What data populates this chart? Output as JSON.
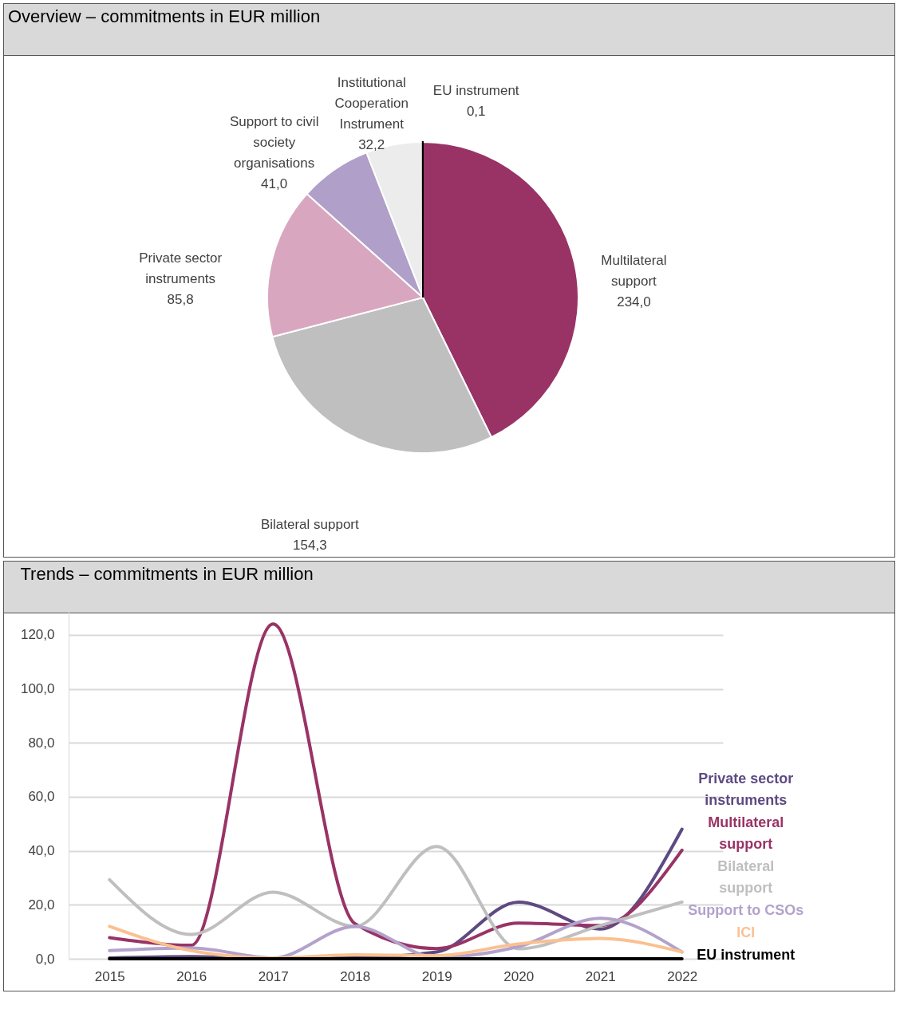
{
  "chart_data": [
    {
      "type": "pie",
      "title": "Overview – commitments in EUR million",
      "categories": [
        "Multilateral support",
        "Bilateral support",
        "Private sector instruments",
        "Support to civil society organisations",
        "Institutional Cooperation Instrument",
        "EU instrument"
      ],
      "values": [
        234.0,
        154.3,
        85.8,
        41.0,
        32.2,
        0.1
      ],
      "value_labels": [
        "234,0",
        "154,3",
        "85,8",
        "41,0",
        "32,2",
        "0,1"
      ],
      "colors": [
        "#993366",
        "#bfbfbf",
        "#d9a6bf",
        "#b09fc8",
        "#ececec",
        "#000000"
      ]
    },
    {
      "type": "line",
      "title": "Trends – commitments in EUR million",
      "categories": [
        "2015",
        "2016",
        "2017",
        "2018",
        "2019",
        "2020",
        "2021",
        "2022"
      ],
      "ylim": [
        0,
        130
      ],
      "yticks": [
        {
          "value": 0,
          "label": "0,0"
        },
        {
          "value": 20,
          "label": "20,0"
        },
        {
          "value": 40,
          "label": "40,0"
        },
        {
          "value": 60,
          "label": "60,0"
        },
        {
          "value": 80,
          "label": "80,0"
        },
        {
          "value": 100,
          "label": "100,0"
        },
        {
          "value": 120,
          "label": "120,0"
        }
      ],
      "grid": "y",
      "series": [
        {
          "name": "Private sector instruments",
          "color": "#5e4a82",
          "values": [
            0.3,
            0.8,
            0.3,
            0.5,
            2.5,
            21,
            11,
            48
          ]
        },
        {
          "name": "Multilateral support",
          "color": "#993366",
          "values": [
            7.8,
            5,
            124,
            13,
            3.8,
            13.2,
            12.3,
            40.2
          ]
        },
        {
          "name": "Bilateral support",
          "color": "#bfbfbf",
          "values": [
            29.3,
            9,
            24.7,
            12,
            41.6,
            3.7,
            12.3,
            21
          ]
        },
        {
          "name": "Support to CSOs",
          "color": "#b3a2cc",
          "values": [
            3,
            4,
            0.3,
            12,
            0.5,
            4.5,
            15,
            2.5
          ]
        },
        {
          "name": "ICI",
          "color": "#fac090",
          "values": [
            12,
            3,
            0.3,
            1.5,
            1.2,
            5.5,
            7.5,
            2.5
          ]
        },
        {
          "name": "EU instrument",
          "color": "#000000",
          "values": [
            0,
            0,
            0,
            0,
            0,
            0,
            0,
            0
          ]
        }
      ]
    }
  ]
}
